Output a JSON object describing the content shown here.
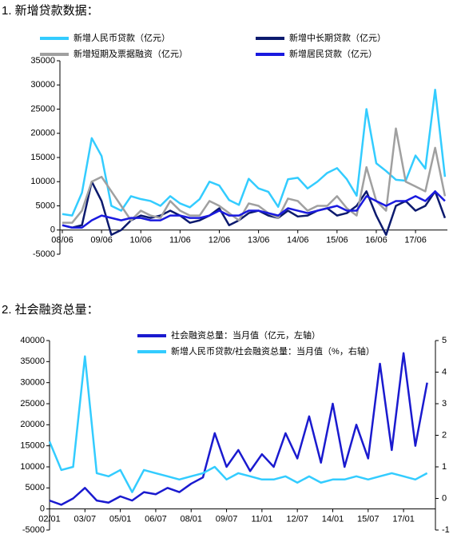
{
  "chart_data": [
    {
      "type": "line",
      "title": "1. 新增贷款数据：",
      "categories": [
        "08/06",
        null,
        null,
        null,
        "09/06",
        null,
        null,
        null,
        "10/06",
        null,
        null,
        null,
        "11/06",
        null,
        null,
        null,
        "12/06",
        null,
        null,
        null,
        "13/06",
        null,
        null,
        null,
        "14/06",
        null,
        null,
        null,
        "15/06",
        null,
        null,
        null,
        "16/06",
        null,
        null,
        null,
        "17/06",
        null,
        null,
        null
      ],
      "series": [
        {
          "name": "新增人民币贷款（亿元）",
          "color": "#33ccff",
          "values": [
            3300,
            3000,
            7700,
            19000,
            15300,
            5000,
            4000,
            7000,
            6400,
            6000,
            5000,
            7000,
            5500,
            4700,
            6400,
            10000,
            9200,
            6200,
            5200,
            10600,
            8600,
            7900,
            4800,
            10500,
            10800,
            8600,
            10000,
            11800,
            12800,
            10500,
            7100,
            25000,
            13800,
            12200,
            10400,
            10200,
            15400,
            12700,
            29000,
            11000
          ]
        },
        {
          "name": "新增中长期贷款（亿元）",
          "color": "#0c1a6e",
          "values": [
            1000,
            500,
            1000,
            10000,
            6000,
            -1000,
            0,
            2000,
            3000,
            2500,
            3000,
            4000,
            3000,
            1500,
            2000,
            3000,
            4500,
            1000,
            2000,
            3500,
            4000,
            3000,
            2500,
            4000,
            2800,
            3000,
            4000,
            4500,
            3000,
            3500,
            5000,
            8000,
            3000,
            -1000,
            5000,
            6000,
            4000,
            5000,
            8000,
            2500
          ]
        },
        {
          "name": "新增短期及票据融资（亿元）",
          "color": "#a0a0a0",
          "values": [
            1500,
            1500,
            4000,
            10000,
            11000,
            8000,
            5000,
            2000,
            4000,
            3000,
            2500,
            6000,
            4000,
            3000,
            3000,
            6000,
            5000,
            3500,
            2000,
            5500,
            5000,
            3500,
            2500,
            6500,
            6000,
            4000,
            5000,
            5000,
            7000,
            4500,
            3000,
            13000,
            6000,
            4000,
            21000,
            10000,
            9000,
            8000,
            17000,
            7000
          ]
        },
        {
          "name": "新增居民贷款（亿元）",
          "color": "#1a1adf",
          "values": [
            1000,
            500,
            500,
            2000,
            3000,
            2500,
            2000,
            2500,
            2500,
            2000,
            2000,
            3000,
            3000,
            2500,
            2500,
            3000,
            4000,
            3000,
            3000,
            4000,
            4000,
            3500,
            3000,
            4500,
            4000,
            3500,
            4000,
            4500,
            5000,
            4000,
            4000,
            7000,
            6000,
            5000,
            6000,
            6000,
            7000,
            6000,
            8000,
            6000
          ]
        }
      ],
      "ylim": [
        -5000,
        35000
      ],
      "yticks": [
        -5000,
        0,
        5000,
        10000,
        15000,
        20000,
        25000,
        30000,
        35000
      ]
    },
    {
      "type": "line",
      "title": "2. 社会融资总量：",
      "categories": [
        "02/01",
        null,
        null,
        "03/07",
        null,
        null,
        "05/01",
        null,
        null,
        "06/07",
        null,
        null,
        "08/01",
        null,
        null,
        "09/07",
        null,
        null,
        "11/01",
        null,
        null,
        "12/07",
        null,
        null,
        "14/01",
        null,
        null,
        "15/07",
        null,
        null,
        "17/01",
        null,
        null
      ],
      "series": [
        {
          "name": "社会融资总量：当月值（亿元，左轴）",
          "color": "#1a1acf",
          "values": [
            2000,
            1000,
            2500,
            5000,
            2000,
            1500,
            3000,
            2000,
            4000,
            3500,
            5000,
            4000,
            6000,
            7500,
            18000,
            10000,
            14000,
            9000,
            13000,
            10000,
            18000,
            12000,
            22000,
            11000,
            25000,
            10000,
            20000,
            12000,
            34500,
            14000,
            37000,
            15000,
            30000
          ]
        },
        {
          "name": "新增人民币贷款/社会融资总量：当月值（%，右轴）",
          "color": "#33ccff",
          "axis": "y2",
          "values": [
            1.8,
            0.9,
            1.0,
            4.5,
            0.8,
            0.7,
            0.9,
            0.2,
            0.9,
            0.8,
            0.7,
            0.6,
            0.7,
            0.8,
            1.0,
            0.6,
            0.8,
            0.7,
            0.6,
            0.6,
            0.7,
            0.5,
            0.7,
            0.5,
            0.6,
            0.6,
            0.7,
            0.6,
            0.7,
            0.8,
            0.7,
            0.6,
            0.8
          ]
        }
      ],
      "ylim": [
        -5000,
        40000
      ],
      "yticks": [
        -5000,
        0,
        5000,
        10000,
        15000,
        20000,
        25000,
        30000,
        35000,
        40000
      ],
      "y2lim": [
        -1,
        5
      ],
      "y2ticks": [
        -1,
        0,
        1,
        2,
        3,
        4,
        5
      ]
    }
  ]
}
